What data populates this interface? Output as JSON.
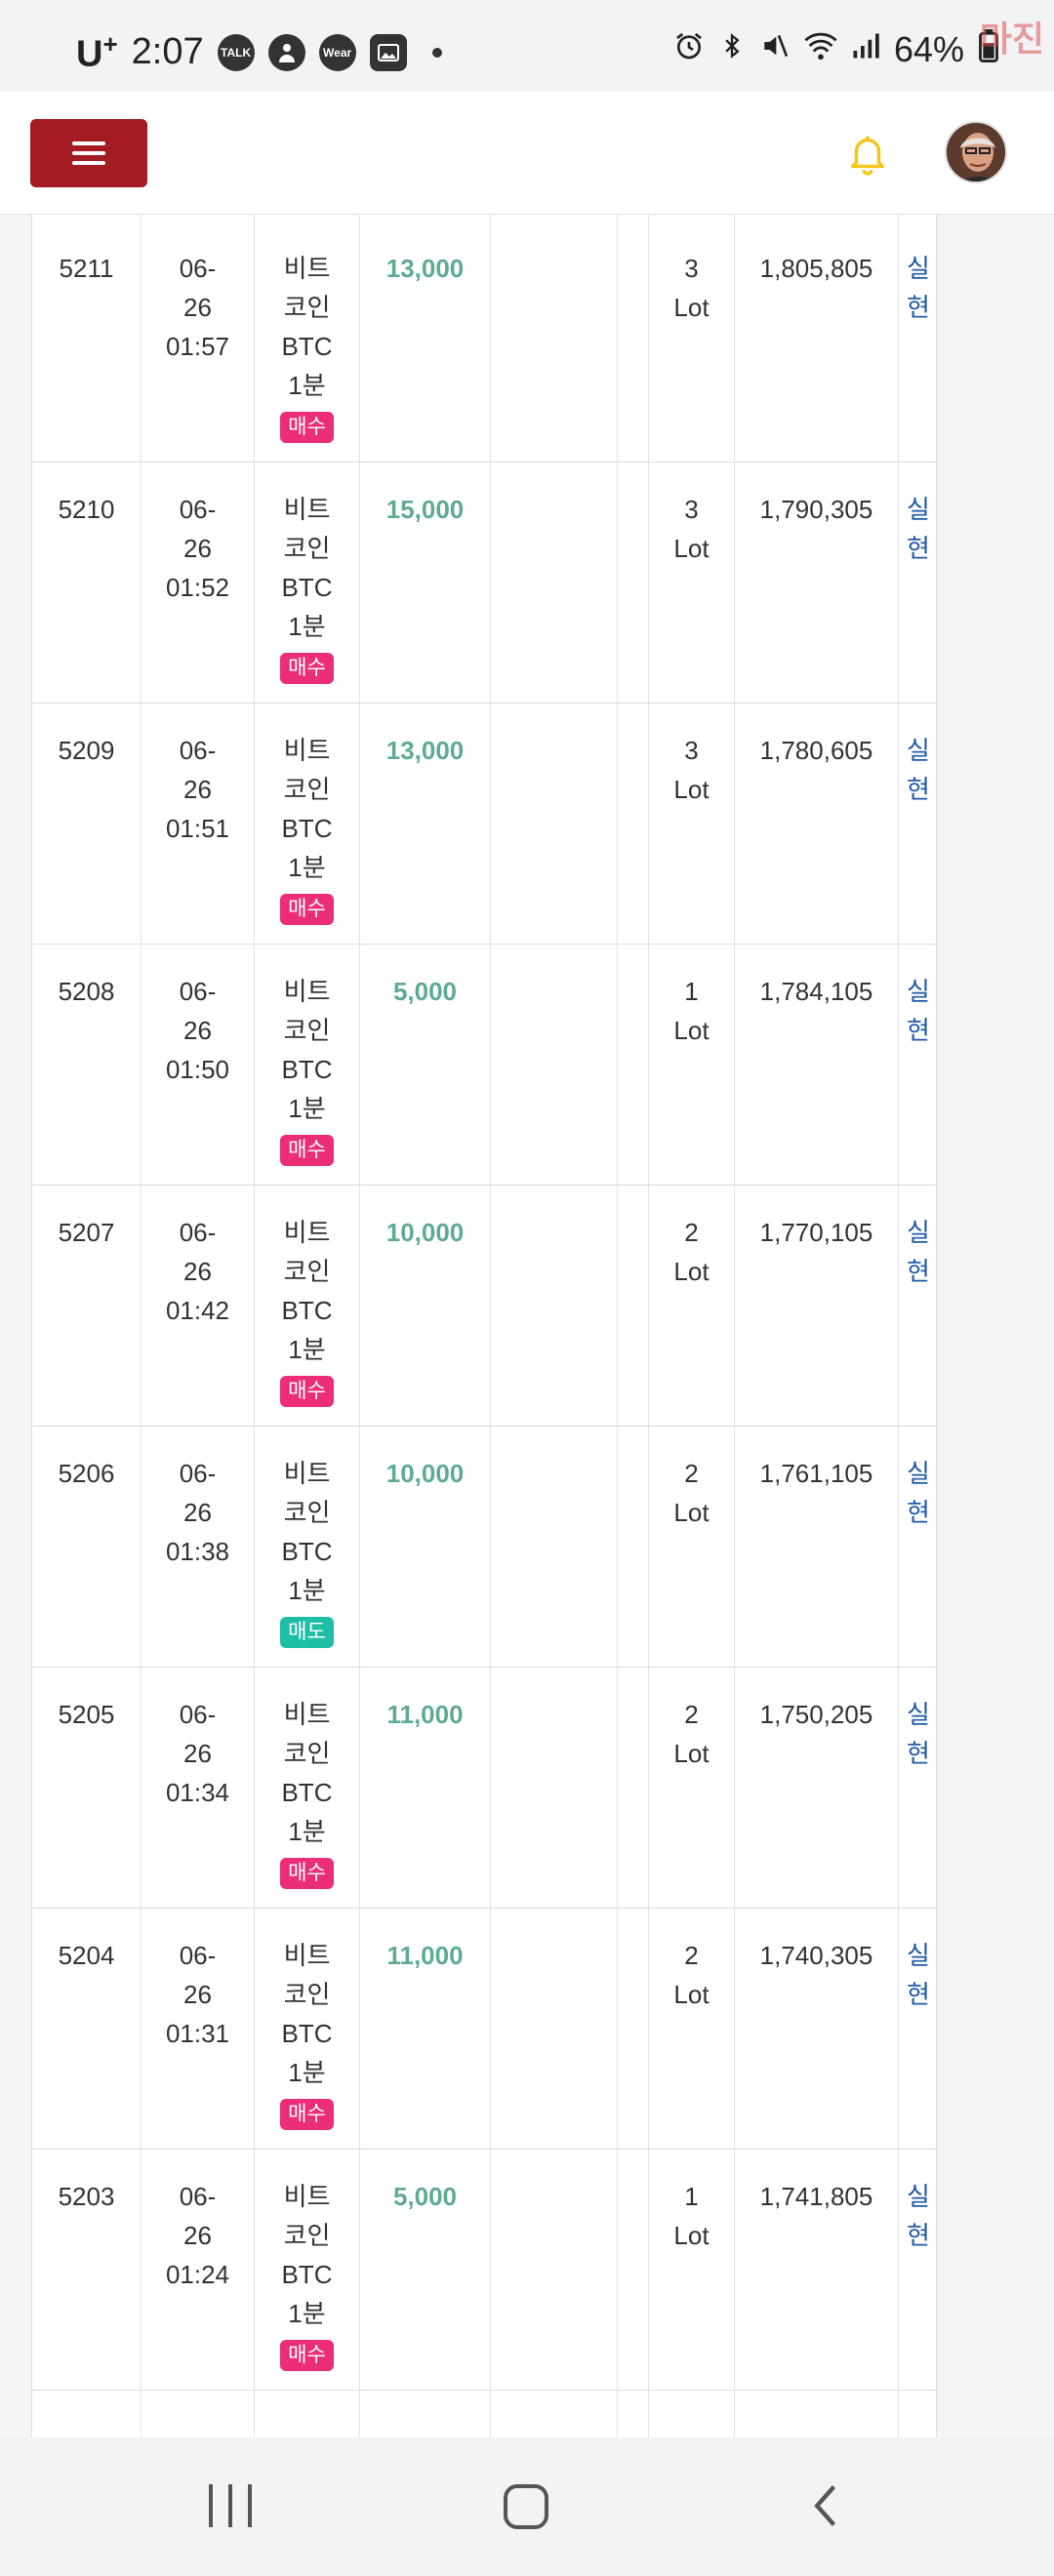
{
  "status_bar": {
    "carrier": "U",
    "carrier_sup": "+",
    "time": "2:07",
    "icons": [
      "talk-icon",
      "person-icon",
      "wear-icon",
      "image-icon"
    ],
    "icon_labels": [
      "TALK",
      "",
      "Wear",
      ""
    ],
    "battery": "64%",
    "watermark": "마진"
  },
  "header": {
    "menu_icon": "hamburger-icon",
    "bell_icon": "bell-icon",
    "avatar_icon": "avatar"
  },
  "table": {
    "rows": [
      {
        "id": "5211",
        "date": "06-",
        "day": "26",
        "time": "01:57",
        "name1": "비트",
        "name2": "코인",
        "name3": "BTC",
        "name4": "1분",
        "type": "매수",
        "amount": "13,000",
        "lot_num": "3",
        "lot": "Lot",
        "balance": "1,805,805",
        "status1": "실",
        "status2": "현"
      },
      {
        "id": "5210",
        "date": "06-",
        "day": "26",
        "time": "01:52",
        "name1": "비트",
        "name2": "코인",
        "name3": "BTC",
        "name4": "1분",
        "type": "매수",
        "amount": "15,000",
        "lot_num": "3",
        "lot": "Lot",
        "balance": "1,790,305",
        "status1": "실",
        "status2": "현"
      },
      {
        "id": "5209",
        "date": "06-",
        "day": "26",
        "time": "01:51",
        "name1": "비트",
        "name2": "코인",
        "name3": "BTC",
        "name4": "1분",
        "type": "매수",
        "amount": "13,000",
        "lot_num": "3",
        "lot": "Lot",
        "balance": "1,780,605",
        "status1": "실",
        "status2": "현"
      },
      {
        "id": "5208",
        "date": "06-",
        "day": "26",
        "time": "01:50",
        "name1": "비트",
        "name2": "코인",
        "name3": "BTC",
        "name4": "1분",
        "type": "매수",
        "amount": "5,000",
        "lot_num": "1",
        "lot": "Lot",
        "balance": "1,784,105",
        "status1": "실",
        "status2": "현"
      },
      {
        "id": "5207",
        "date": "06-",
        "day": "26",
        "time": "01:42",
        "name1": "비트",
        "name2": "코인",
        "name3": "BTC",
        "name4": "1분",
        "type": "매수",
        "amount": "10,000",
        "lot_num": "2",
        "lot": "Lot",
        "balance": "1,770,105",
        "status1": "실",
        "status2": "현"
      },
      {
        "id": "5206",
        "date": "06-",
        "day": "26",
        "time": "01:38",
        "name1": "비트",
        "name2": "코인",
        "name3": "BTC",
        "name4": "1분",
        "type": "매도",
        "amount": "10,000",
        "lot_num": "2",
        "lot": "Lot",
        "balance": "1,761,105",
        "status1": "실",
        "status2": "현"
      },
      {
        "id": "5205",
        "date": "06-",
        "day": "26",
        "time": "01:34",
        "name1": "비트",
        "name2": "코인",
        "name3": "BTC",
        "name4": "1분",
        "type": "매수",
        "amount": "11,000",
        "lot_num": "2",
        "lot": "Lot",
        "balance": "1,750,205",
        "status1": "실",
        "status2": "현"
      },
      {
        "id": "5204",
        "date": "06-",
        "day": "26",
        "time": "01:31",
        "name1": "비트",
        "name2": "코인",
        "name3": "BTC",
        "name4": "1분",
        "type": "매수",
        "amount": "11,000",
        "lot_num": "2",
        "lot": "Lot",
        "balance": "1,740,305",
        "status1": "실",
        "status2": "현"
      },
      {
        "id": "5203",
        "date": "06-",
        "day": "26",
        "time": "01:24",
        "name1": "비트",
        "name2": "코인",
        "name3": "BTC",
        "name4": "1분",
        "type": "매수",
        "amount": "5,000",
        "lot_num": "1",
        "lot": "Lot",
        "balance": "1,741,805",
        "status1": "실",
        "status2": "현"
      }
    ],
    "colors": {
      "buy": "#ec2d78",
      "sell": "#1fbfa6",
      "amount": "#5eaa96",
      "status": "#1f5aa8"
    }
  },
  "nav_bar": {
    "recent_icon": "recent-apps-icon",
    "home_icon": "home-icon",
    "back_icon": "back-icon"
  }
}
